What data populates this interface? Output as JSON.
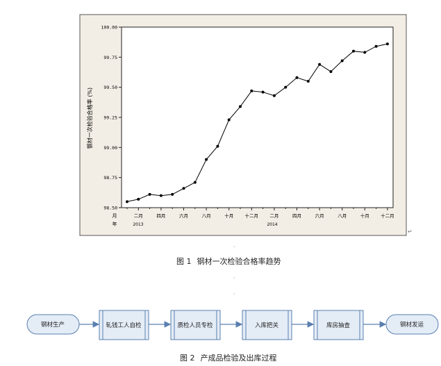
{
  "chart_data": {
    "type": "line",
    "ylabel": "钢材一次检验合格率 (%)",
    "ylim": [
      98.5,
      100.0
    ],
    "yticks": [
      "100.00",
      "99.75",
      "99.50",
      "99.25",
      "99.00",
      "98.75",
      "98.50"
    ],
    "xticks": [
      "二月",
      "四月",
      "六月",
      "八月",
      "十月",
      "十二月",
      "二月",
      "四月",
      "六月",
      "八月",
      "十月",
      "十二月"
    ],
    "x_month_label": "月",
    "x_year_label": "年",
    "years": [
      "2013",
      "2014"
    ],
    "grid": false,
    "values": [
      98.55,
      98.57,
      98.61,
      98.6,
      98.61,
      98.66,
      98.71,
      98.9,
      99.01,
      99.23,
      99.34,
      99.47,
      99.46,
      99.43,
      99.5,
      99.58,
      99.55,
      99.69,
      99.63,
      99.72,
      99.8,
      99.79,
      99.84,
      99.86
    ]
  },
  "caption1": {
    "num": "图 1",
    "text": "钢材一次检验合格率趋势"
  },
  "flow": {
    "start": "钢材生产",
    "steps": [
      "轧钱工人自检",
      "质检人员专检",
      "入库把关",
      "库房抽查"
    ],
    "end": "钢材发运"
  },
  "caption2": {
    "num": "图 2",
    "text": "产成品检验及出库过程"
  }
}
